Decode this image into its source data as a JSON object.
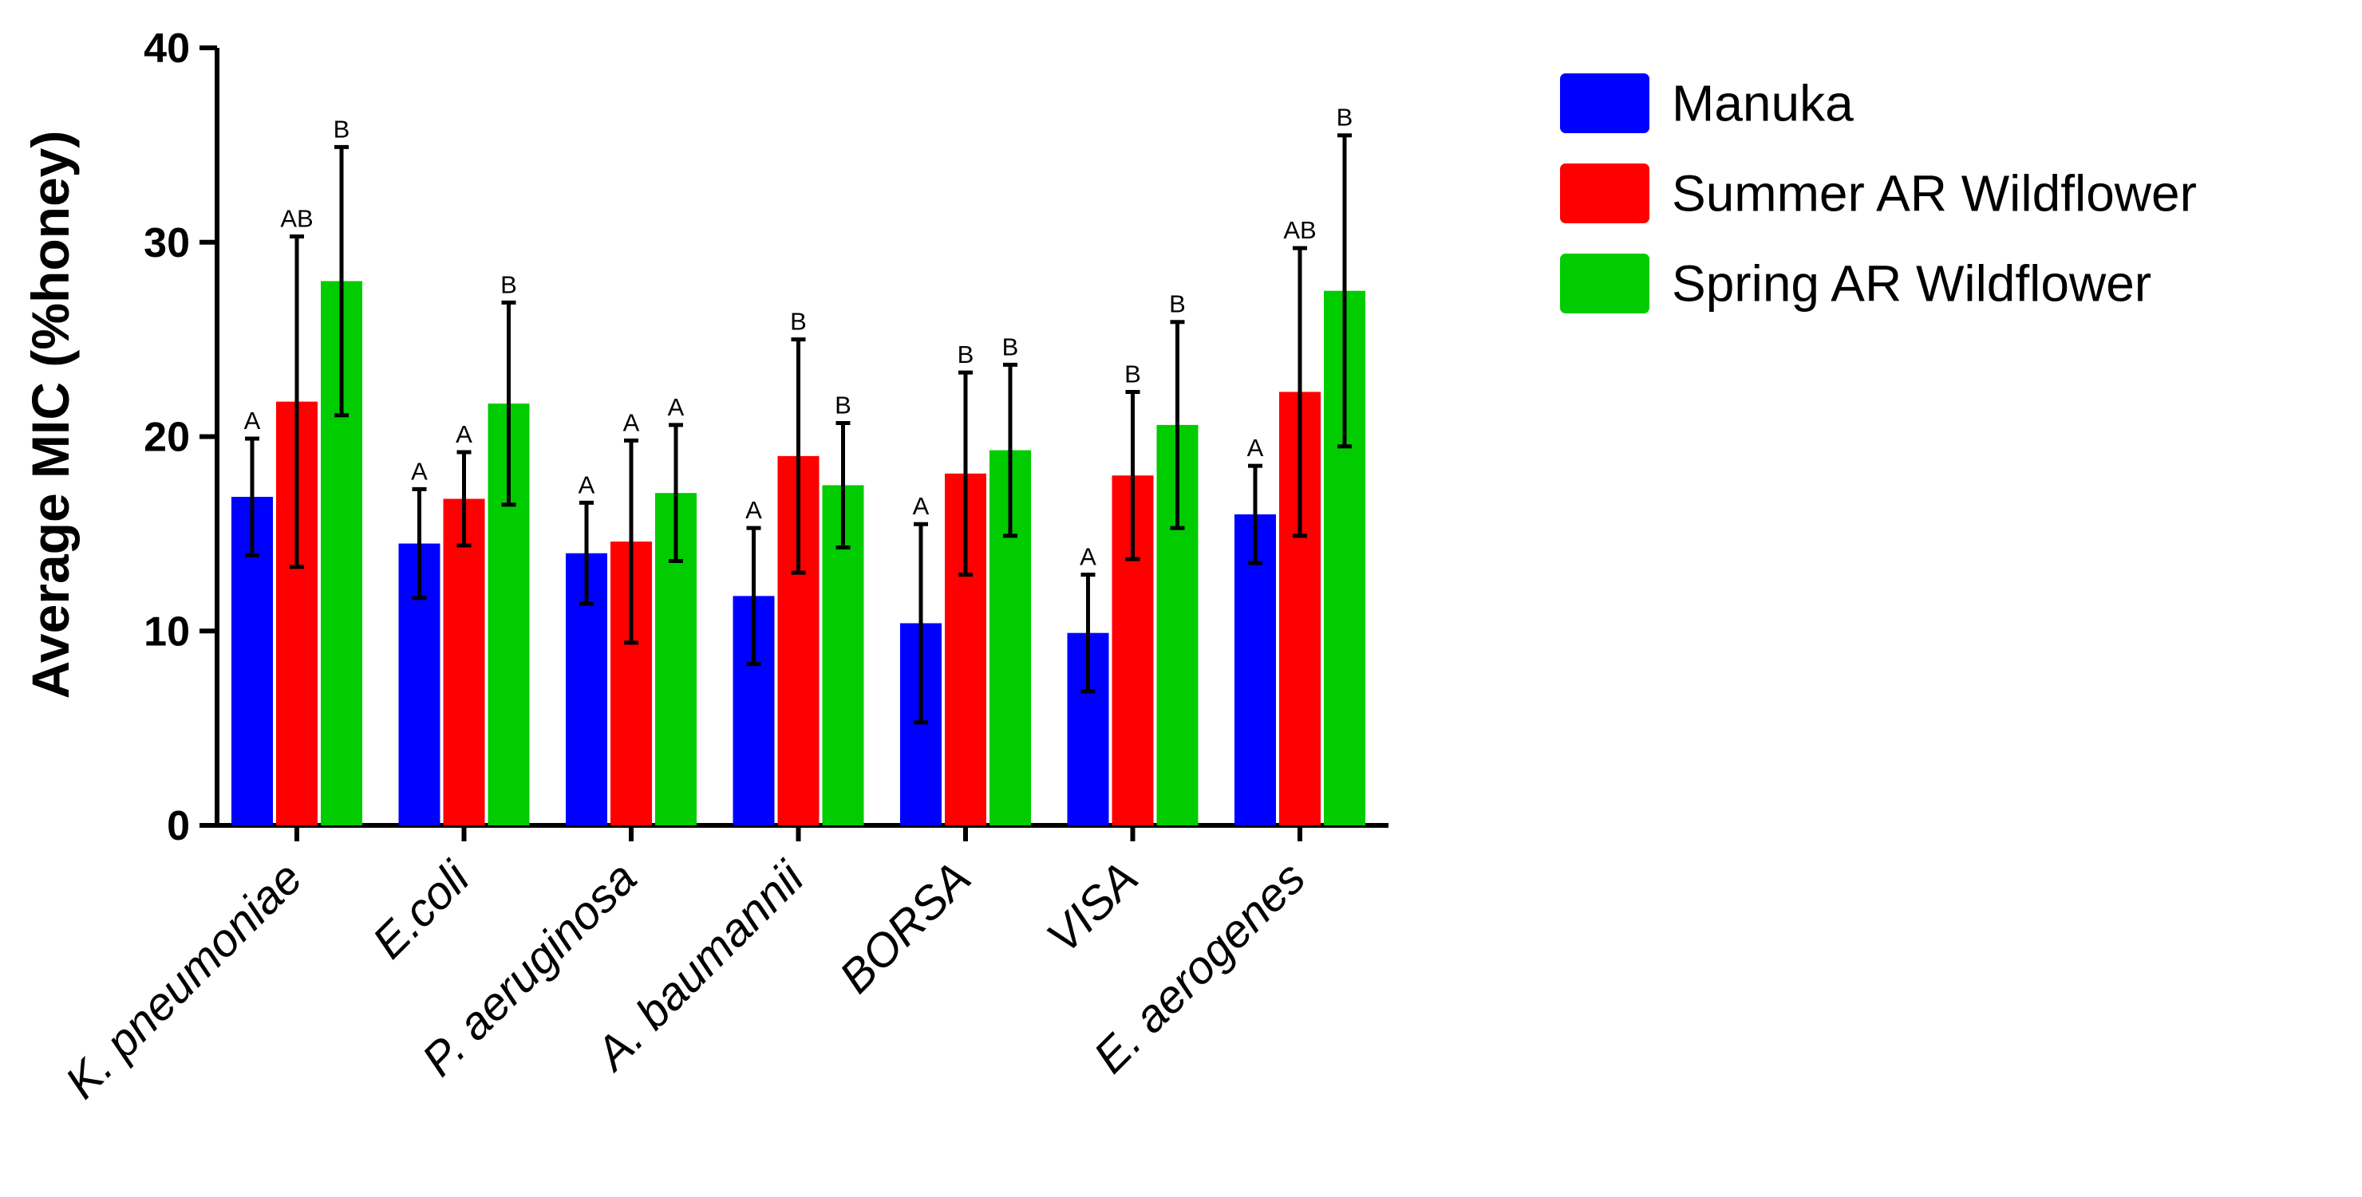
{
  "chart_data": {
    "type": "bar",
    "title": "",
    "xlabel": "",
    "ylabel": "Average MIC (%honey)",
    "ylim": [
      0,
      40
    ],
    "yticks": [
      "0",
      "10",
      "20",
      "30",
      "40"
    ],
    "yticks_values": [
      0,
      10,
      20,
      30,
      40
    ],
    "categories": [
      "K. pneumoniae",
      "E.coli",
      "P. aeruginosa",
      "A. baumannii",
      "BORSA",
      "VISA",
      "E. aerogenes"
    ],
    "series": [
      {
        "name": "Manuka",
        "color": "#0000ff",
        "values": [
          16.9,
          14.5,
          14.0,
          11.8,
          10.4,
          9.9,
          16.0
        ],
        "errors": [
          3.0,
          2.8,
          2.6,
          3.5,
          5.1,
          3.0,
          2.5
        ],
        "letters": [
          "A",
          "A",
          "A",
          "A",
          "A",
          "A",
          "A"
        ]
      },
      {
        "name": "Summer AR Wildflower",
        "color": "#ff0000",
        "values": [
          21.8,
          16.8,
          14.6,
          19.0,
          18.1,
          18.0,
          22.3
        ],
        "errors": [
          8.5,
          2.4,
          5.2,
          6.0,
          5.2,
          4.3,
          7.4
        ],
        "letters": [
          "AB",
          "A",
          "A",
          "B",
          "B",
          "B",
          "AB"
        ]
      },
      {
        "name": "Spring AR Wildflower",
        "color": "#00cc00",
        "values": [
          28.0,
          21.7,
          17.1,
          17.5,
          19.3,
          20.6,
          27.5
        ],
        "errors": [
          6.9,
          5.2,
          3.5,
          3.2,
          4.4,
          5.3,
          8.0
        ],
        "letters": [
          "B",
          "B",
          "A",
          "B",
          "B",
          "B",
          "B"
        ]
      }
    ],
    "legend_position": "top-right"
  }
}
